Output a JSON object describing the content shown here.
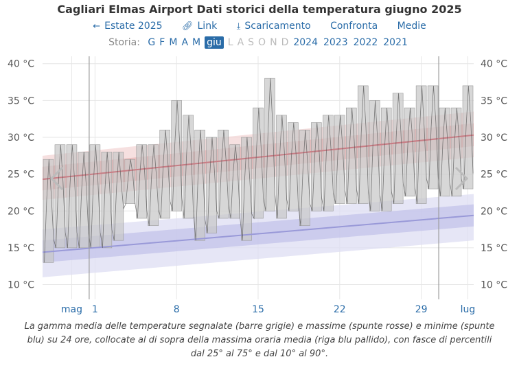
{
  "title": "Cagliari Elmas Airport Dati storici della temperatura giugno 2025",
  "nav": {
    "prev": "Estate 2025",
    "link": "Link",
    "download": "Scaricamento",
    "compare": "Confronta",
    "averages": "Medie",
    "icons": [
      "arrow-left-icon",
      "link-icon",
      "download-icon"
    ]
  },
  "history": {
    "label": "Storia:",
    "months": [
      "G",
      "F",
      "M",
      "A",
      "M",
      "giu",
      "L",
      "A",
      "S",
      "O",
      "N",
      "D"
    ],
    "active_month": "giu",
    "enabled_months": 6,
    "years": [
      "2024",
      "2023",
      "2022",
      "2021"
    ]
  },
  "caption": "La gamma media delle temperature segnalate (barre grigie) e massime (spunte rosse) e minime (spunte blu) su 24 ore, collocate al di sopra della massima oraria media (riga blu pallido), con fasce di percentili dal 25° al 75° e dal 10° al 90°.",
  "colors": {
    "bar": "#c8c8c8",
    "bar_edge": "#9a9a9a",
    "hourly_line": "#555555",
    "high_band_outer": "#f3d6d6",
    "high_band_inner": "#e8b5b5",
    "high_line": "#c77d85",
    "low_band_outer": "#dedef3",
    "low_band_inner": "#c3c3ea",
    "low_line": "#9999d8",
    "grid": "#e6e6e6",
    "link": "#2a6ca8"
  },
  "chart_data": {
    "type": "bar",
    "y_unit": "°C",
    "ylim": [
      8,
      41
    ],
    "yticks": [
      10,
      15,
      20,
      25,
      30,
      35,
      40
    ],
    "ytick_labels": [
      "10 °C",
      "15 °C",
      "20 °C",
      "25 °C",
      "30 °C",
      "35 °C",
      "40 °C"
    ],
    "x_range": [
      "2025-05-28",
      "2025-07-03"
    ],
    "x_ticks": [
      {
        "date": "2025-05-30",
        "label": "mag"
      },
      {
        "date": "2025-06-01",
        "label": "1"
      },
      {
        "date": "2025-06-08",
        "label": "8"
      },
      {
        "date": "2025-06-15",
        "label": "15"
      },
      {
        "date": "2025-06-22",
        "label": "22"
      },
      {
        "date": "2025-06-29",
        "label": "29"
      },
      {
        "date": "2025-07-03",
        "label": "lug"
      }
    ],
    "days": [
      {
        "date": "2025-05-28",
        "low": 13,
        "high": 27
      },
      {
        "date": "2025-05-29",
        "low": 15,
        "high": 29
      },
      {
        "date": "2025-05-30",
        "low": 15,
        "high": 29
      },
      {
        "date": "2025-05-31",
        "low": 15,
        "high": 28
      },
      {
        "date": "2025-06-01",
        "low": 15,
        "high": 29
      },
      {
        "date": "2025-06-02",
        "low": 15,
        "high": 28
      },
      {
        "date": "2025-06-03",
        "low": 16,
        "high": 28
      },
      {
        "date": "2025-06-04",
        "low": 21,
        "high": 27
      },
      {
        "date": "2025-06-05",
        "low": 19,
        "high": 29
      },
      {
        "date": "2025-06-06",
        "low": 18,
        "high": 29
      },
      {
        "date": "2025-06-07",
        "low": 19,
        "high": 31
      },
      {
        "date": "2025-06-08",
        "low": 20,
        "high": 35
      },
      {
        "date": "2025-06-09",
        "low": 19,
        "high": 33
      },
      {
        "date": "2025-06-10",
        "low": 16,
        "high": 31
      },
      {
        "date": "2025-06-11",
        "low": 17,
        "high": 30
      },
      {
        "date": "2025-06-12",
        "low": 19,
        "high": 31
      },
      {
        "date": "2025-06-13",
        "low": 19,
        "high": 29
      },
      {
        "date": "2025-06-14",
        "low": 16,
        "high": 30
      },
      {
        "date": "2025-06-15",
        "low": 19,
        "high": 34
      },
      {
        "date": "2025-06-16",
        "low": 20,
        "high": 38
      },
      {
        "date": "2025-06-17",
        "low": 19,
        "high": 33
      },
      {
        "date": "2025-06-18",
        "low": 20,
        "high": 32
      },
      {
        "date": "2025-06-19",
        "low": 18,
        "high": 31
      },
      {
        "date": "2025-06-20",
        "low": 20,
        "high": 32
      },
      {
        "date": "2025-06-21",
        "low": 20,
        "high": 33
      },
      {
        "date": "2025-06-22",
        "low": 21,
        "high": 33
      },
      {
        "date": "2025-06-23",
        "low": 21,
        "high": 34
      },
      {
        "date": "2025-06-24",
        "low": 21,
        "high": 37
      },
      {
        "date": "2025-06-25",
        "low": 20,
        "high": 35
      },
      {
        "date": "2025-06-26",
        "low": 20,
        "high": 34
      },
      {
        "date": "2025-06-27",
        "low": 21,
        "high": 36
      },
      {
        "date": "2025-06-28",
        "low": 22,
        "high": 34
      },
      {
        "date": "2025-06-29",
        "low": 21,
        "high": 37
      },
      {
        "date": "2025-06-30",
        "low": 23,
        "high": 37
      },
      {
        "date": "2025-07-01",
        "low": 22,
        "high": 34
      },
      {
        "date": "2025-07-02",
        "low": 22,
        "high": 34
      },
      {
        "date": "2025-07-03",
        "low": 23,
        "high": 37
      }
    ],
    "avg_high": {
      "x": [
        "2025-05-28",
        "2025-07-03"
      ],
      "mean": [
        24.3,
        30.3
      ],
      "p25_75": [
        [
          22.8,
          26.0
        ],
        [
          28.8,
          31.9
        ]
      ],
      "p10_90": [
        [
          21.5,
          27.5
        ],
        [
          27.3,
          33.5
        ]
      ]
    },
    "avg_low": {
      "x": [
        "2025-05-28",
        "2025-07-03"
      ],
      "mean": [
        14.4,
        19.4
      ],
      "p25_75": [
        [
          13.0,
          16.0
        ],
        [
          17.9,
          20.9
        ]
      ],
      "p10_90": [
        [
          11.0,
          17.5
        ],
        [
          16.0,
          22.3
        ]
      ]
    },
    "grid": true,
    "month_boundaries": [
      "2025-06-01",
      "2025-07-01"
    ]
  }
}
